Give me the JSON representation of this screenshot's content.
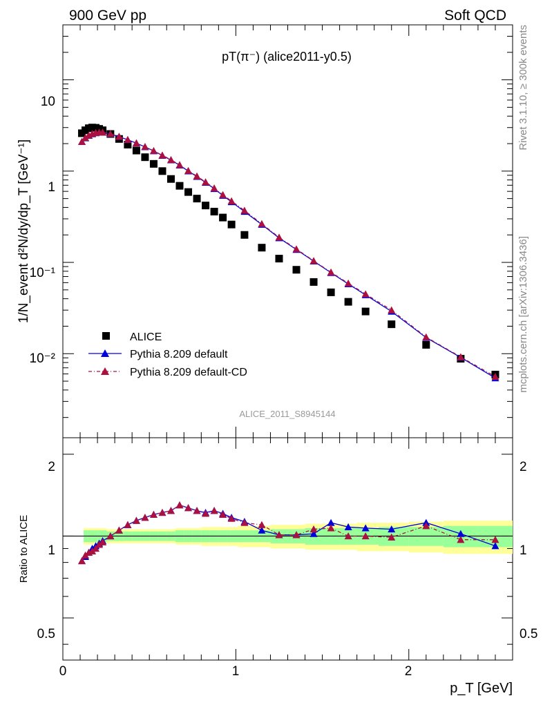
{
  "header": {
    "left": "900 GeV pp",
    "right": "Soft QCD"
  },
  "plot_title": "pT(π⁻) (alice2011-y0.5)",
  "watermark": "ALICE_2011_S8945144",
  "side_text": {
    "rivet": "Rivet 3.1.10, ≥ 300k events",
    "mcplots": "mcplots.cern.ch [arXiv:1306.3436]"
  },
  "axes": {
    "ylabel_main": "1/N_event d²N/dy/dp_T [GeV⁻¹]",
    "ylabel_ratio": "Ratio to ALICE",
    "xlabel": "p_T [GeV]",
    "x_ticks": [
      "0",
      "1",
      "2"
    ],
    "y_ticks_main": [
      "10",
      "1",
      "10⁻¹",
      "10⁻²"
    ],
    "y_ticks_ratio": [
      "2",
      "1",
      "0.5"
    ]
  },
  "legend": {
    "entries": [
      "ALICE",
      "Pythia 8.209 default",
      "Pythia 8.209 default-CD"
    ]
  },
  "colors": {
    "data": "#000000",
    "default": "#0000dd",
    "cd": "#aa1040",
    "band_inner": "#99ff99",
    "band_outer": "#ffff99"
  },
  "chart_data": {
    "type": "scatter",
    "x_range": [
      0,
      2.6
    ],
    "y_range_main": [
      0.0012,
      40
    ],
    "y_scale_main": "log",
    "y_range_ratio": [
      0.35,
      2.3
    ],
    "x": [
      0.11,
      0.13,
      0.15,
      0.17,
      0.19,
      0.21,
      0.23,
      0.275,
      0.325,
      0.375,
      0.425,
      0.475,
      0.525,
      0.575,
      0.625,
      0.675,
      0.725,
      0.775,
      0.825,
      0.875,
      0.925,
      0.975,
      1.05,
      1.15,
      1.25,
      1.35,
      1.45,
      1.55,
      1.65,
      1.75,
      1.9,
      2.1,
      2.3,
      2.5
    ],
    "series": [
      {
        "name": "ALICE",
        "values": [
          2.6,
          2.8,
          2.95,
          3.0,
          2.98,
          2.9,
          2.8,
          2.55,
          2.25,
          1.95,
          1.68,
          1.42,
          1.2,
          1.0,
          0.82,
          0.69,
          0.59,
          0.5,
          0.42,
          0.36,
          0.31,
          0.26,
          0.2,
          0.145,
          0.11,
          0.083,
          0.061,
          0.047,
          0.037,
          0.029,
          0.021,
          0.0125,
          0.0088,
          0.0059
        ]
      },
      {
        "name": "Pythia 8.209 default",
        "values": [
          2.1,
          2.3,
          2.45,
          2.55,
          2.62,
          2.65,
          2.65,
          2.55,
          2.38,
          2.2,
          2.02,
          1.84,
          1.66,
          1.48,
          1.32,
          1.16,
          1.0,
          0.87,
          0.75,
          0.64,
          0.54,
          0.46,
          0.36,
          0.26,
          0.185,
          0.138,
          0.103,
          0.077,
          0.058,
          0.044,
          0.029,
          0.015,
          0.0091,
          0.0054
        ]
      },
      {
        "name": "Pythia 8.209 default-CD",
        "values": [
          2.1,
          2.32,
          2.47,
          2.57,
          2.63,
          2.66,
          2.66,
          2.56,
          2.39,
          2.21,
          2.03,
          1.85,
          1.67,
          1.49,
          1.33,
          1.17,
          1.01,
          0.88,
          0.76,
          0.65,
          0.55,
          0.47,
          0.37,
          0.265,
          0.188,
          0.14,
          0.104,
          0.078,
          0.059,
          0.045,
          0.03,
          0.0152,
          0.0092,
          0.0056
        ]
      }
    ],
    "ratio": [
      {
        "name": "Pythia 8.209 default",
        "values": [
          0.81,
          0.84,
          0.87,
          0.9,
          0.92,
          0.94,
          0.96,
          1.0,
          1.05,
          1.1,
          1.14,
          1.17,
          1.2,
          1.22,
          1.24,
          1.3,
          1.27,
          1.24,
          1.22,
          1.24,
          1.21,
          1.17,
          1.13,
          1.05,
          1.01,
          1.01,
          1.02,
          1.12,
          1.08,
          1.07,
          1.06,
          1.12,
          1.02,
          0.92
        ]
      },
      {
        "name": "Pythia 8.209 default-CD",
        "values": [
          0.81,
          0.85,
          0.87,
          0.88,
          0.9,
          0.93,
          0.95,
          1.0,
          1.05,
          1.1,
          1.14,
          1.17,
          1.2,
          1.22,
          1.24,
          1.3,
          1.27,
          1.24,
          1.21,
          1.24,
          1.2,
          1.16,
          1.12,
          1.1,
          1.01,
          1.01,
          1.06,
          1.07,
          1.0,
          1.0,
          0.99,
          1.09,
          0.97,
          0.97
        ]
      }
    ],
    "ratio_band_inner": [
      1.15,
      0.95,
      0.95,
      0.95,
      0.95,
      0.95,
      0.95,
      0.96,
      0.96,
      0.96,
      0.96,
      0.96,
      0.96,
      0.96,
      0.96,
      0.95,
      0.95,
      0.95,
      0.95,
      0.95,
      0.95,
      0.95,
      0.95,
      0.95,
      0.94,
      0.94,
      0.93,
      0.93,
      0.93,
      0.93,
      0.92,
      0.92,
      0.91,
      0.91
    ],
    "ratio_band_outer": [
      1.35,
      0.93,
      0.93,
      0.93,
      0.93,
      0.93,
      0.93,
      0.94,
      0.94,
      0.94,
      0.94,
      0.94,
      0.94,
      0.94,
      0.94,
      0.93,
      0.93,
      0.93,
      0.92,
      0.92,
      0.92,
      0.92,
      0.91,
      0.91,
      0.9,
      0.9,
      0.89,
      0.89,
      0.89,
      0.88,
      0.88,
      0.87,
      0.86,
      0.86
    ]
  }
}
